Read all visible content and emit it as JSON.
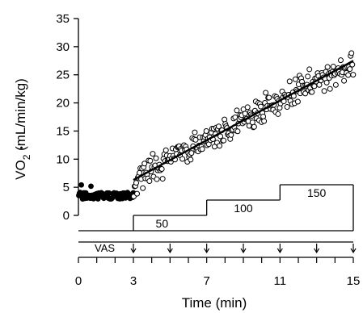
{
  "chart_data": {
    "type": "scatter",
    "ylabel": "VO2 (mL/min/kg)",
    "ylabel_main": "VO",
    "ylabel_sub": "2",
    "ylabel_unit": " (mL/min/kg)",
    "xlabel": "Time (min)",
    "ylim": [
      0,
      35
    ],
    "xlim": [
      0,
      15
    ],
    "y_ticks": [
      0,
      5,
      10,
      15,
      20,
      25,
      30,
      35
    ],
    "x_ticks": [
      0,
      3,
      7,
      11,
      15
    ],
    "rest_markers": {
      "style": "filled",
      "x_range": [
        0,
        3
      ],
      "mean": 3.5,
      "spread": 0.6
    },
    "exercise_markers": {
      "style": "open",
      "x_range": [
        3,
        15
      ],
      "spread": 1.8
    },
    "fit_line": {
      "x": [
        3,
        15
      ],
      "y": [
        6.3,
        27.5
      ]
    },
    "workload": {
      "steps": [
        {
          "x0": 3,
          "x1": 7,
          "level": 1,
          "label": "50"
        },
        {
          "x0": 7,
          "x1": 11,
          "level": 2,
          "label": "100"
        },
        {
          "x0": 11,
          "x1": 15,
          "level": 3,
          "label": "150"
        }
      ]
    },
    "vas": {
      "label": "VAS",
      "times": [
        3,
        5,
        7,
        9,
        11,
        13,
        15
      ]
    },
    "grid": false,
    "legend": "none"
  }
}
